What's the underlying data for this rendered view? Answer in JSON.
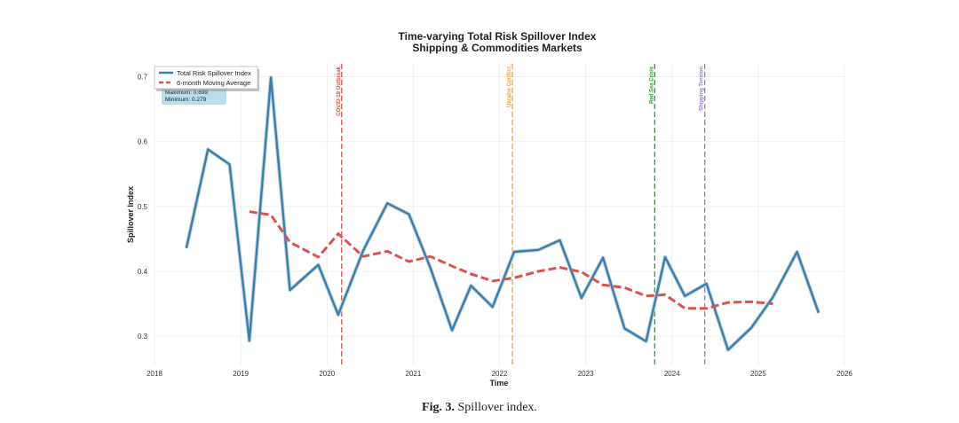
{
  "chart_data": {
    "type": "line",
    "title": "Time-varying Total Risk Spillover Index",
    "subtitle": "Shipping & Commodities Markets",
    "xlabel": "Time",
    "ylabel": "Spillover Index",
    "xlim": [
      2018,
      2026
    ],
    "ylim": [
      0.255,
      0.72
    ],
    "x_ticks": [
      "2018",
      "2019",
      "2020",
      "2021",
      "2022",
      "2023",
      "2024",
      "2025",
      "2026"
    ],
    "y_ticks": [
      "0.3",
      "0.4",
      "0.5",
      "0.6",
      "0.7"
    ],
    "grid": true,
    "legend_position": "top-left",
    "series": [
      {
        "name": "Total Risk Spillover Index",
        "color": "#3a7fab",
        "style": "solid",
        "x": [
          2018.37,
          2018.62,
          2018.87,
          2019.1,
          2019.35,
          2019.57,
          2019.9,
          2020.13,
          2020.42,
          2020.7,
          2020.95,
          2021.2,
          2021.45,
          2021.67,
          2021.92,
          2022.17,
          2022.45,
          2022.7,
          2022.95,
          2023.2,
          2023.45,
          2023.7,
          2023.92,
          2024.15,
          2024.4,
          2024.65,
          2024.92,
          2025.17,
          2025.45,
          2025.7
        ],
        "values": [
          0.436,
          0.588,
          0.565,
          0.293,
          0.699,
          0.371,
          0.41,
          0.333,
          0.432,
          0.505,
          0.488,
          0.405,
          0.309,
          0.378,
          0.345,
          0.43,
          0.433,
          0.448,
          0.359,
          0.421,
          0.312,
          0.292,
          0.422,
          0.362,
          0.381,
          0.279,
          0.313,
          0.36,
          0.43,
          0.336
        ]
      },
      {
        "name": "6-month Moving Average",
        "color": "#d9534f",
        "style": "dashed",
        "x": [
          2019.1,
          2019.35,
          2019.57,
          2019.9,
          2020.13,
          2020.42,
          2020.7,
          2020.95,
          2021.2,
          2021.45,
          2021.67,
          2021.92,
          2022.17,
          2022.45,
          2022.7,
          2022.95,
          2023.2,
          2023.45,
          2023.7,
          2023.92,
          2024.15,
          2024.4,
          2024.65,
          2024.92,
          2025.17
        ],
        "values": [
          0.492,
          0.487,
          0.445,
          0.422,
          0.458,
          0.423,
          0.431,
          0.415,
          0.423,
          0.408,
          0.396,
          0.385,
          0.39,
          0.4,
          0.406,
          0.399,
          0.379,
          0.375,
          0.362,
          0.364,
          0.343,
          0.343,
          0.352,
          0.353,
          0.35
        ]
      }
    ],
    "events": [
      {
        "label": "COVID-19 Outbreak",
        "x": 2020.17,
        "color": "#d9534f"
      },
      {
        "label": "Ukraine Conflict",
        "x": 2022.15,
        "color": "#f0a04b"
      },
      {
        "label": "Red Sea Crisis",
        "x": 2023.8,
        "color": "#2ca02c"
      },
      {
        "label": "Shipping Tension",
        "x": 2024.38,
        "color": "#9b7fc8"
      }
    ],
    "stats": {
      "max_label": "Maximum: 0.699",
      "min_label": "Minimum: 0.279"
    }
  },
  "caption": {
    "label": "Fig. 3.",
    "text": "Spillover index."
  }
}
